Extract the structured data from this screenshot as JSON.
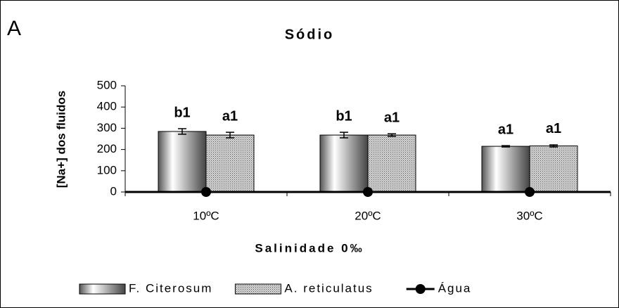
{
  "chart_data": {
    "type": "bar",
    "panel": "A",
    "title": "Sódio",
    "xlabel": "Salinidade 0‰",
    "ylabel": "[Na+] dos fluidos",
    "categories": [
      "10ºC",
      "20ºC",
      "30ºC"
    ],
    "series": [
      {
        "name": "F. Citerosum",
        "type": "bar",
        "color": "#7a7a7a",
        "fill_style": "gradient",
        "values": [
          285,
          268,
          215
        ],
        "errors": [
          13,
          13,
          3
        ],
        "letters": [
          "b1",
          "b1",
          "a1"
        ]
      },
      {
        "name": "A. reticulatus",
        "type": "bar",
        "color": "#8a8a8a",
        "fill_style": "pattern",
        "values": [
          268,
          268,
          217
        ],
        "errors": [
          13,
          6,
          5
        ],
        "letters": [
          "a1",
          "a1",
          "a1"
        ]
      },
      {
        "name": "Água",
        "type": "line",
        "color": "#000000",
        "values": [
          0,
          0,
          0
        ]
      }
    ],
    "ylim": [
      0,
      500
    ],
    "yticks": [
      0,
      100,
      200,
      300,
      400,
      500
    ],
    "legend": "bottom"
  }
}
